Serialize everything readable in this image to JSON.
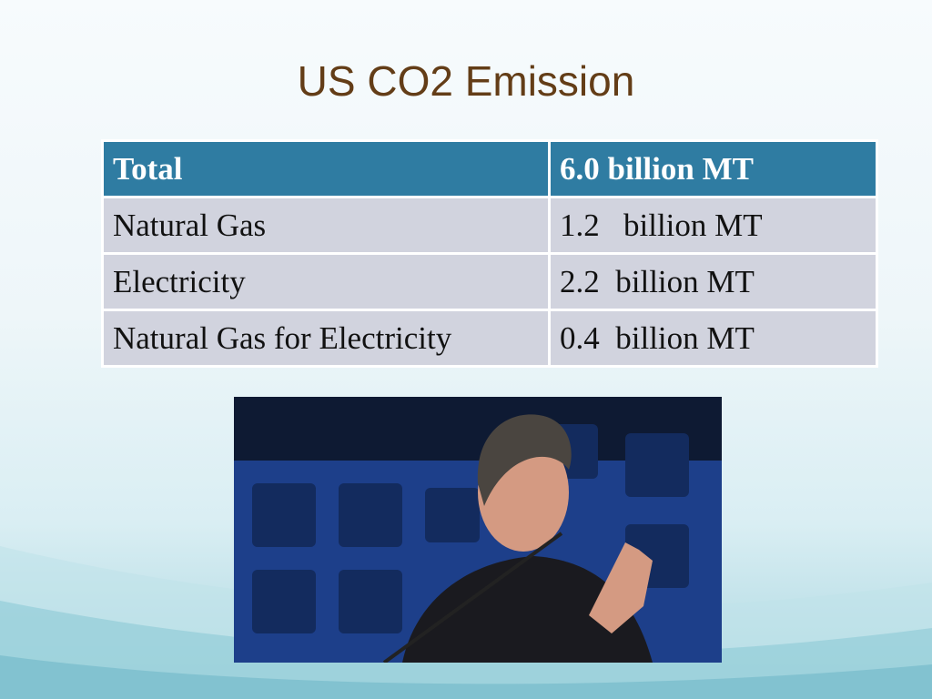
{
  "title": "US CO2 Emission",
  "table": {
    "header": [
      "Total",
      "6.0 billion MT"
    ],
    "rows": [
      [
        "Natural Gas",
        "1.2   billion MT"
      ],
      [
        "Electricity",
        "2.2  billion MT"
      ],
      [
        "Natural Gas for Electricity",
        "0.4  billion MT"
      ]
    ]
  }
}
